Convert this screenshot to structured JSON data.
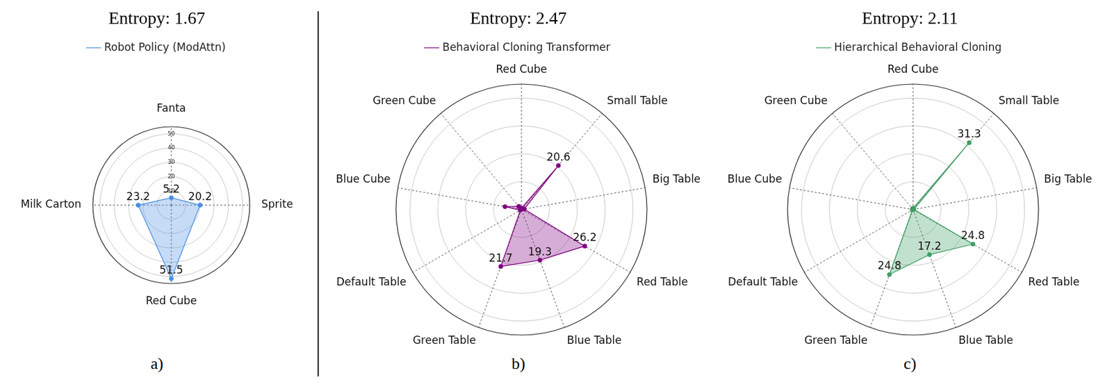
{
  "chart_data": [
    {
      "type": "radar",
      "title": "Entropy: 1.67",
      "subtitle": "a)",
      "categories": [
        "Fanta",
        "Sprite",
        "Red Cube",
        "Milk Carton"
      ],
      "series": [
        {
          "name": "Robot Policy (ModAttn)",
          "color": "#4a90e2",
          "values": [
            5.2,
            20.2,
            51.5,
            23.2
          ]
        }
      ],
      "ylim": [
        0,
        55
      ],
      "yticks": [
        10,
        20,
        30,
        40,
        50
      ],
      "grid": true,
      "legend": "top",
      "data_labels": true,
      "tick_labels": "y"
    },
    {
      "type": "radar",
      "title": "Entropy: 2.47",
      "subtitle": "b)",
      "categories": [
        "Red Cube",
        "Small Table",
        "Big Table",
        "Red Table",
        "Blue Table",
        "Green Table",
        "Default Table",
        "Blue Cube",
        "Green Cube"
      ],
      "series": [
        {
          "name": "Behavioral Cloning Transformer",
          "color": "#800080",
          "values": [
            0.5,
            20.6,
            1,
            26.2,
            19.3,
            21.7,
            0.5,
            6,
            1.5
          ],
          "value_labels": [
            null,
            "20.6",
            null,
            "26.2",
            "19.3",
            "21.7",
            null,
            null,
            null
          ]
        }
      ],
      "ylim": [
        0,
        45
      ],
      "yticks": [
        10,
        20,
        30,
        40
      ],
      "grid": true,
      "legend": "top",
      "data_labels": true,
      "tick_labels": false
    },
    {
      "type": "radar",
      "title": "Entropy: 2.11",
      "subtitle": "c)",
      "categories": [
        "Red Cube",
        "Small Table",
        "Big Table",
        "Red Table",
        "Blue Table",
        "Green Table",
        "Default Table",
        "Blue Cube",
        "Green Cube"
      ],
      "series": [
        {
          "name": "Hierarchical Behavioral Cloning",
          "color": "#3f9f63",
          "values": [
            0.5,
            31.3,
            0.3,
            24.8,
            17.2,
            24.8,
            0.3,
            0.3,
            0.3
          ],
          "value_labels": [
            null,
            "31.3",
            null,
            "24.8",
            "17.2",
            "24.8",
            null,
            null,
            null
          ]
        }
      ],
      "ylim": [
        0,
        45
      ],
      "yticks": [
        10,
        20,
        30,
        40
      ],
      "grid": true,
      "legend": "top",
      "data_labels": true,
      "tick_labels": false
    }
  ]
}
